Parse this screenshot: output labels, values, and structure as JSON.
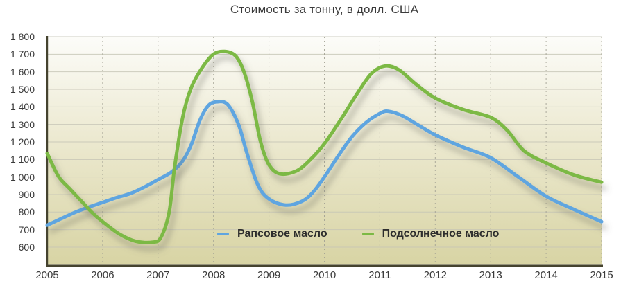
{
  "chart_data": {
    "type": "line",
    "title": "Стоимость за тонну, в долл. США",
    "xlabel": "",
    "ylabel": "",
    "xlim": [
      2005,
      2015
    ],
    "ylim": [
      500,
      1800
    ],
    "grid": true,
    "legend_position": "inside-bottom-center",
    "x_ticks": [
      2005,
      2006,
      2007,
      2008,
      2009,
      2010,
      2011,
      2012,
      2013,
      2014,
      2015
    ],
    "x_tick_labels": [
      "2005",
      "2006",
      "2007",
      "2008",
      "2009",
      "2010",
      "2011",
      "2012",
      "2013",
      "2014",
      "2015"
    ],
    "y_ticks": [
      1800,
      1700,
      1600,
      1500,
      1400,
      1300,
      1200,
      1100,
      1000,
      900,
      800,
      700,
      600
    ],
    "y_tick_labels": [
      "1 800",
      "1 700",
      "1 600",
      "1 500",
      "1 400",
      "1 300",
      "1 200",
      "1 100",
      "1 000",
      "900",
      "800",
      "700",
      "600"
    ],
    "series": [
      {
        "name": "Рапсовое масло",
        "color": "#5fa5e0",
        "points": [
          [
            2005,
            725
          ],
          [
            2005.25,
            762
          ],
          [
            2005.5,
            798
          ],
          [
            2005.75,
            828
          ],
          [
            2006,
            855
          ],
          [
            2006.25,
            882
          ],
          [
            2006.5,
            906
          ],
          [
            2006.75,
            942
          ],
          [
            2007,
            985
          ],
          [
            2007.25,
            1030
          ],
          [
            2007.45,
            1095
          ],
          [
            2007.6,
            1185
          ],
          [
            2007.75,
            1320
          ],
          [
            2007.9,
            1405
          ],
          [
            2008.05,
            1428
          ],
          [
            2008.25,
            1415
          ],
          [
            2008.45,
            1300
          ],
          [
            2008.6,
            1140
          ],
          [
            2008.8,
            955
          ],
          [
            2009,
            875
          ],
          [
            2009.3,
            840
          ],
          [
            2009.6,
            862
          ],
          [
            2009.8,
            915
          ],
          [
            2010,
            1000
          ],
          [
            2010.25,
            1120
          ],
          [
            2010.5,
            1230
          ],
          [
            2010.75,
            1310
          ],
          [
            2011,
            1362
          ],
          [
            2011.15,
            1375
          ],
          [
            2011.4,
            1350
          ],
          [
            2011.7,
            1295
          ],
          [
            2012,
            1240
          ],
          [
            2012.5,
            1170
          ],
          [
            2013,
            1110
          ],
          [
            2013.5,
            1000
          ],
          [
            2014,
            890
          ],
          [
            2014.5,
            815
          ],
          [
            2015,
            745
          ]
        ]
      },
      {
        "name": "Подсолнечное масло",
        "color": "#7cb944",
        "points": [
          [
            2005,
            1135
          ],
          [
            2005.2,
            1005
          ],
          [
            2005.4,
            935
          ],
          [
            2005.6,
            868
          ],
          [
            2005.8,
            800
          ],
          [
            2006,
            745
          ],
          [
            2006.3,
            675
          ],
          [
            2006.6,
            633
          ],
          [
            2006.9,
            628
          ],
          [
            2007.05,
            655
          ],
          [
            2007.2,
            800
          ],
          [
            2007.3,
            1060
          ],
          [
            2007.45,
            1350
          ],
          [
            2007.6,
            1510
          ],
          [
            2007.8,
            1625
          ],
          [
            2008,
            1700
          ],
          [
            2008.2,
            1716
          ],
          [
            2008.4,
            1690
          ],
          [
            2008.55,
            1600
          ],
          [
            2008.7,
            1430
          ],
          [
            2008.85,
            1200
          ],
          [
            2009,
            1070
          ],
          [
            2009.2,
            1018
          ],
          [
            2009.5,
            1035
          ],
          [
            2009.75,
            1100
          ],
          [
            2010,
            1190
          ],
          [
            2010.3,
            1330
          ],
          [
            2010.6,
            1480
          ],
          [
            2010.85,
            1590
          ],
          [
            2011.1,
            1633
          ],
          [
            2011.35,
            1610
          ],
          [
            2011.65,
            1530
          ],
          [
            2012,
            1450
          ],
          [
            2012.5,
            1385
          ],
          [
            2013,
            1340
          ],
          [
            2013.3,
            1265
          ],
          [
            2013.6,
            1150
          ],
          [
            2014,
            1080
          ],
          [
            2014.5,
            1012
          ],
          [
            2015,
            970
          ]
        ]
      }
    ],
    "styles": {
      "plot_bg_top": "#fcfcf9",
      "plot_bg_mid": "#ece9d0",
      "plot_bg_bottom": "#d8d4a4",
      "hgrid_color": "#c6c5b6",
      "vgrid_color": "#a3a294",
      "axis_color": "#45432f",
      "text_color": "#3a3a3a",
      "shadow_color": "#6b6a5e"
    }
  }
}
